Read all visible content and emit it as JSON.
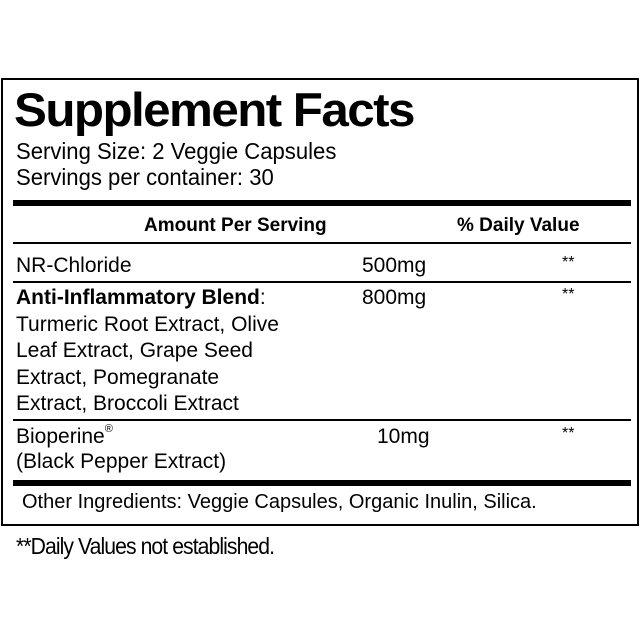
{
  "title": "Supplement Facts",
  "serving_size": "Serving Size: 2 Veggie Capsules",
  "servings_per_container": "Servings per container: 30",
  "header": {
    "amount": "Amount Per Serving",
    "daily_value": "% Daily Value"
  },
  "rows": [
    {
      "name": "NR-Chloride",
      "amount": "500mg",
      "dv": "**"
    },
    {
      "name": "Anti-Inflammatory Blend",
      "name_suffix": ":",
      "amount": "800mg",
      "dv": "**",
      "sub_lines": [
        "Turmeric Root Extract, Olive",
        "Leaf Extract, Grape Seed",
        "Extract, Pomegranate",
        "Extract, Broccoli Extract"
      ]
    },
    {
      "name": "Bioperine",
      "mark": "®",
      "amount": "10mg",
      "dv": "**",
      "sub_lines": [
        "(Black Pepper Extract)"
      ]
    }
  ],
  "other_ingredients": "Other Ingredients: Veggie Capsules, Organic Inulin, Silica.",
  "footnote": "**Daily Values not established."
}
